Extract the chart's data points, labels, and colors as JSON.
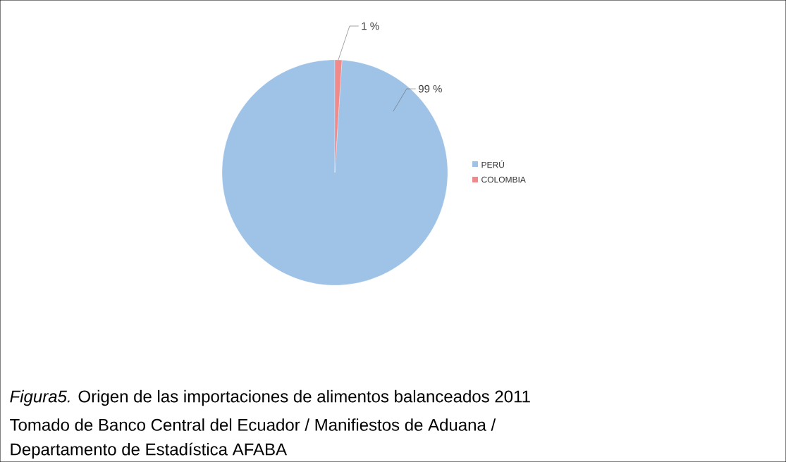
{
  "chart_data": {
    "type": "pie",
    "categories": [
      "PERÚ",
      "COLOMBIA"
    ],
    "values": [
      99,
      1
    ],
    "colors": [
      "#9fc2e7",
      "#f08a8a"
    ],
    "value_labels": [
      "99 %",
      "1 %"
    ],
    "legend": "right",
    "annotations": [
      "*Figura5.* Origen de las importaciones de alimentos balanceados 2011",
      "Tomado de Banco Central del Ecuador / Manifiestos de Aduana /",
      "Departamento de Estadística AFABA"
    ]
  }
}
